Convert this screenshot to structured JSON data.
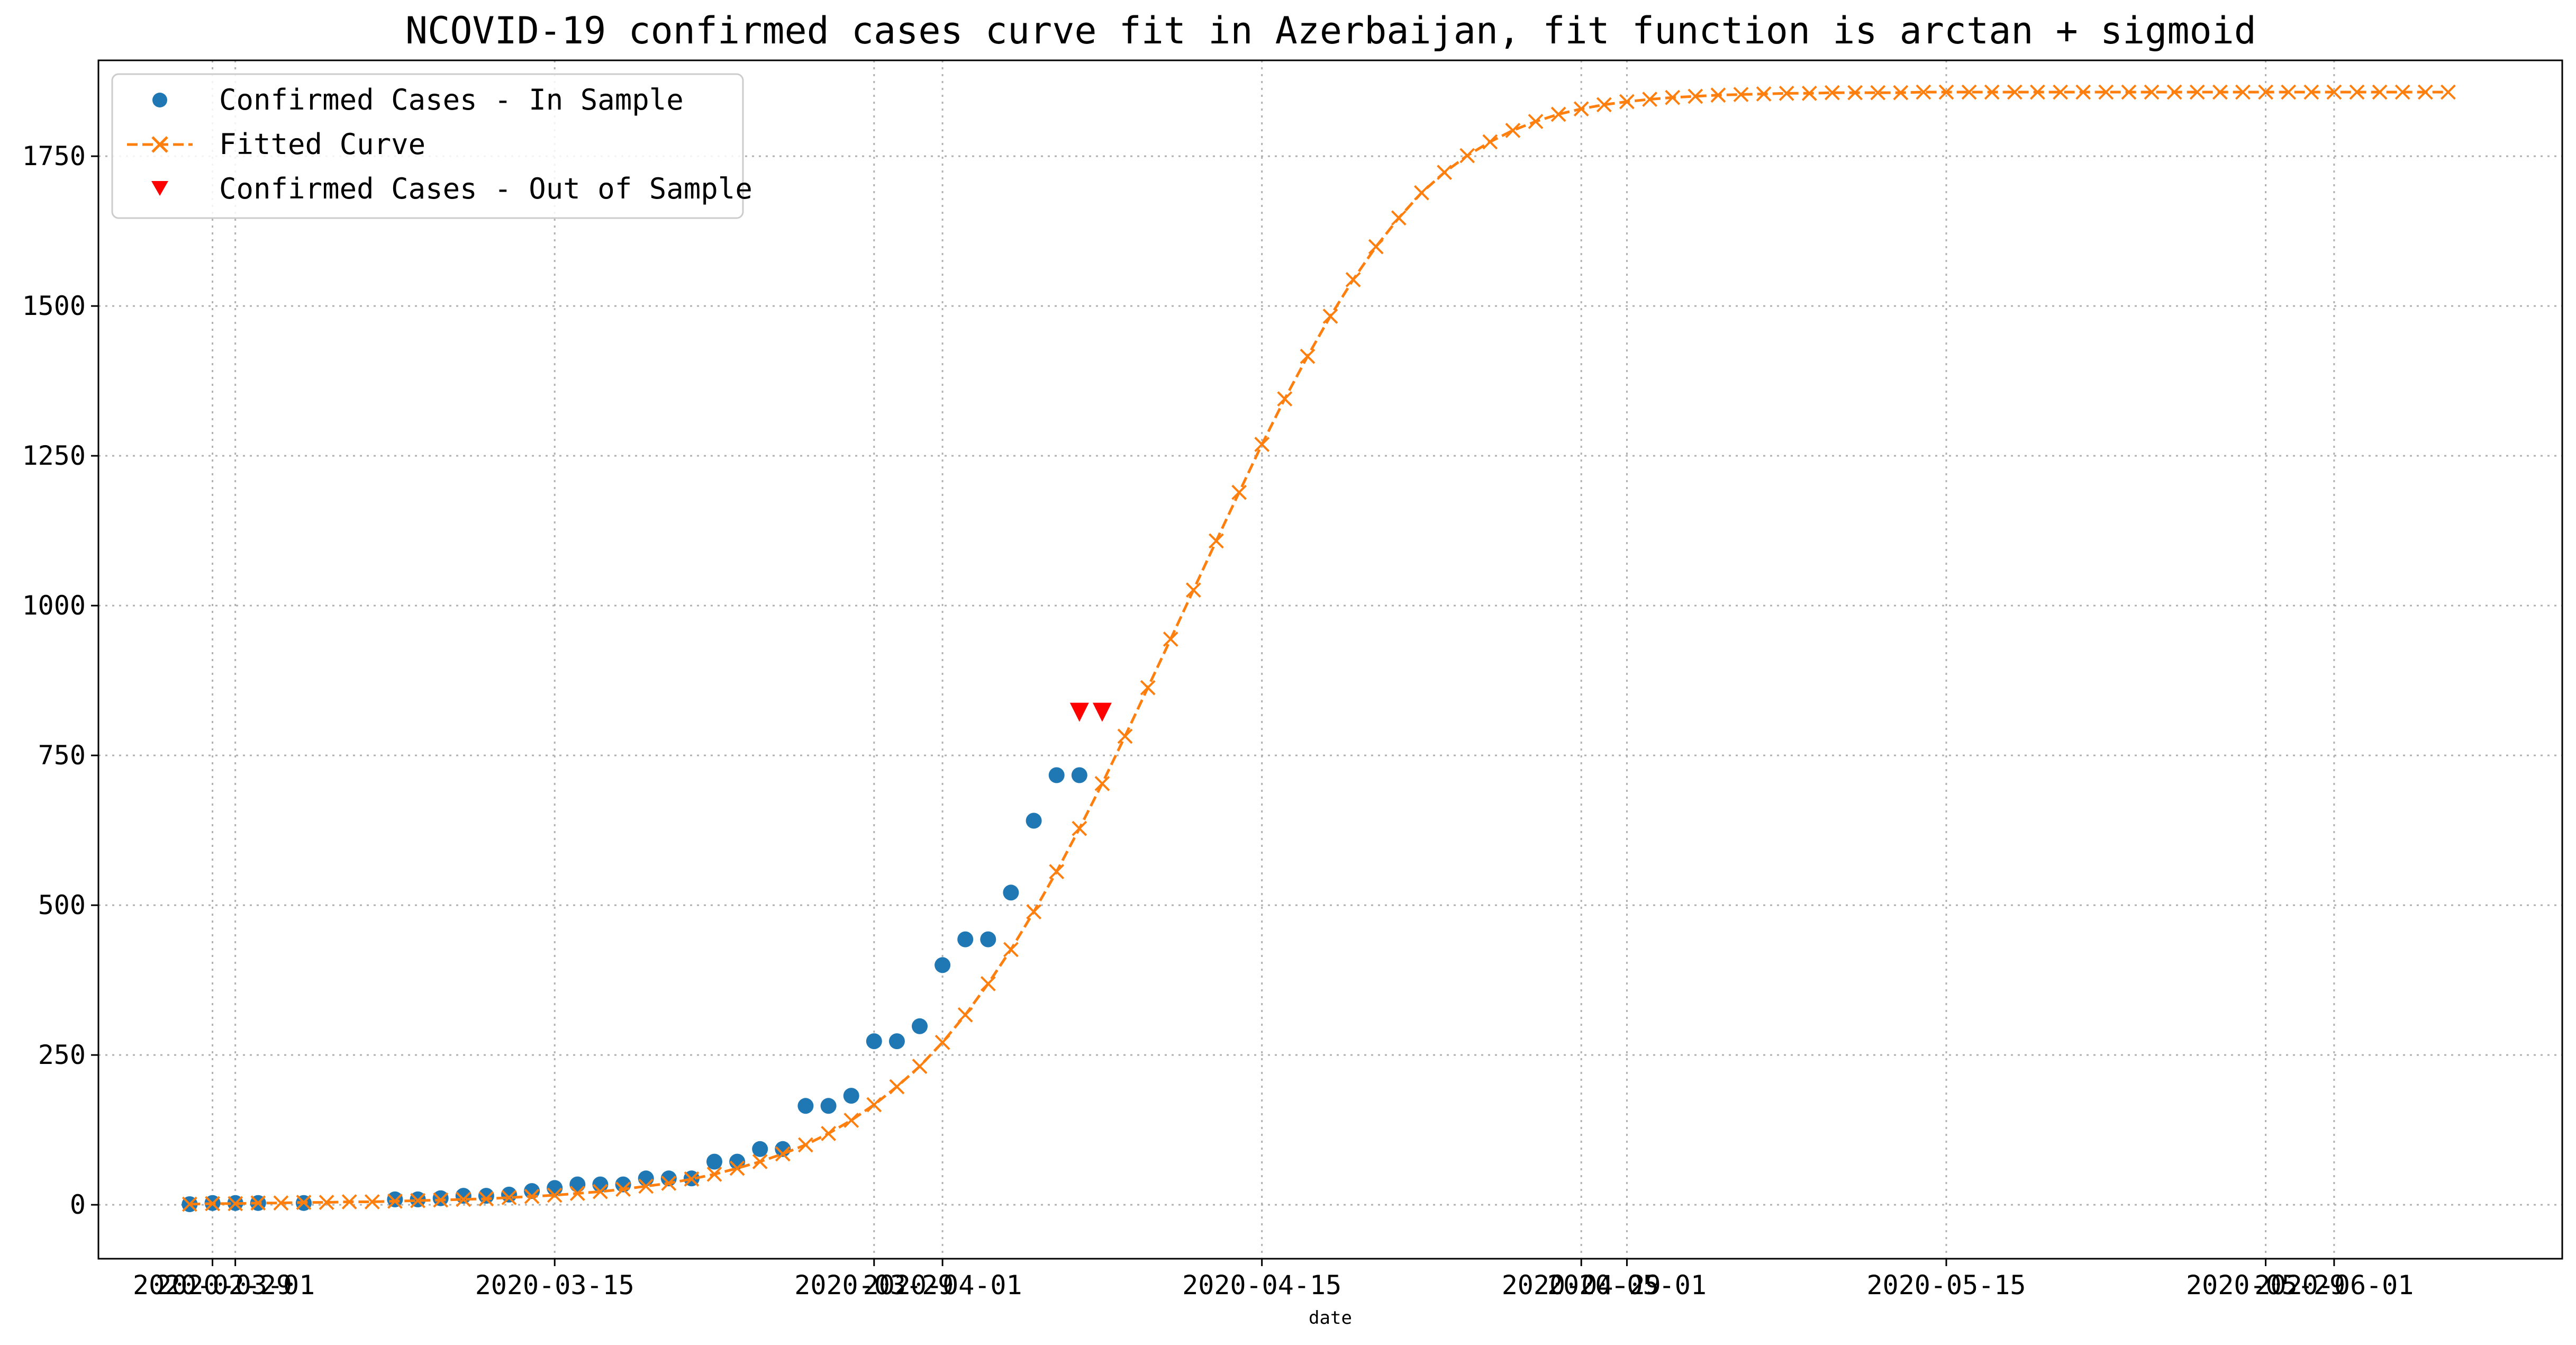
{
  "chart_data": {
    "type": "line",
    "title": "NCOVID-19 confirmed cases curve fit in Azerbaijan, fit function is arctan + sigmoid",
    "xlabel": "date",
    "ylabel": "",
    "xlim": [
      "2020-02-24",
      "2020-06-11"
    ],
    "ylim": [
      -90,
      1910
    ],
    "grid": true,
    "legend": {
      "placement": "top-left"
    },
    "x_ticks": [
      "2020-02-29",
      "2020-03-01",
      "2020-03-15",
      "2020-03-29",
      "2020-04-01",
      "2020-04-15",
      "2020-04-29",
      "2020-05-01",
      "2020-05-15",
      "2020-05-29",
      "2020-06-01"
    ],
    "y_ticks": [
      0,
      250,
      500,
      750,
      1000,
      1250,
      1500,
      1750
    ],
    "x_start_date": "2020-02-28",
    "series": [
      {
        "name": "Confirmed Cases - In Sample",
        "kind": "points",
        "marker": "circle",
        "color": "#1f77b4",
        "dates": [
          "2020-02-28",
          "2020-02-29",
          "2020-03-01",
          "2020-03-02",
          "2020-03-04",
          "2020-03-08",
          "2020-03-09",
          "2020-03-10",
          "2020-03-11",
          "2020-03-12",
          "2020-03-13",
          "2020-03-14",
          "2020-03-15",
          "2020-03-16",
          "2020-03-17",
          "2020-03-18",
          "2020-03-19",
          "2020-03-20",
          "2020-03-21",
          "2020-03-22",
          "2020-03-23",
          "2020-03-24",
          "2020-03-25",
          "2020-03-26",
          "2020-03-27",
          "2020-03-28",
          "2020-03-29",
          "2020-03-30",
          "2020-03-31",
          "2020-04-01",
          "2020-04-02",
          "2020-04-03",
          "2020-04-04",
          "2020-04-05",
          "2020-04-06",
          "2020-04-07"
        ],
        "values": [
          1,
          3,
          3,
          3,
          3,
          9,
          9,
          11,
          15,
          15,
          17,
          23,
          28,
          34,
          34,
          34,
          44,
          44,
          44,
          72,
          72,
          93,
          93,
          165,
          165,
          182,
          273,
          273,
          298,
          400,
          443,
          443,
          521,
          641,
          717,
          717
        ]
      },
      {
        "name": "Fitted Curve",
        "kind": "line",
        "marker": "x",
        "color": "#ff7f0e",
        "dash": "dashed",
        "start_date": "2020-02-28",
        "values": [
          1,
          2,
          2,
          3,
          3,
          4,
          4,
          5,
          5,
          6,
          7,
          8,
          9,
          10,
          12,
          14,
          16,
          19,
          22,
          26,
          31,
          36,
          43,
          51,
          61,
          72,
          85,
          100,
          119,
          141,
          167,
          197,
          231,
          271,
          317,
          369,
          426,
          489,
          556,
          628,
          703,
          782,
          863,
          944,
          1026,
          1108,
          1189,
          1269,
          1345,
          1416,
          1483,
          1544,
          1599,
          1647,
          1689,
          1723,
          1751,
          1774,
          1793,
          1808,
          1820,
          1829,
          1836,
          1841,
          1845,
          1848,
          1850,
          1852,
          1853,
          1854,
          1855,
          1855,
          1856,
          1856,
          1856,
          1856,
          1857,
          1857,
          1857,
          1857,
          1857,
          1857,
          1857,
          1857,
          1857,
          1857,
          1857,
          1857,
          1857,
          1857,
          1857,
          1857,
          1857,
          1857,
          1857,
          1857,
          1857,
          1857,
          1857,
          1857
        ]
      },
      {
        "name": "Confirmed Cases - Out of Sample",
        "kind": "points",
        "marker": "triangle-down",
        "color": "#ff0000",
        "dates": [
          "2020-04-07",
          "2020-04-08"
        ],
        "values": [
          822,
          822
        ]
      }
    ]
  }
}
